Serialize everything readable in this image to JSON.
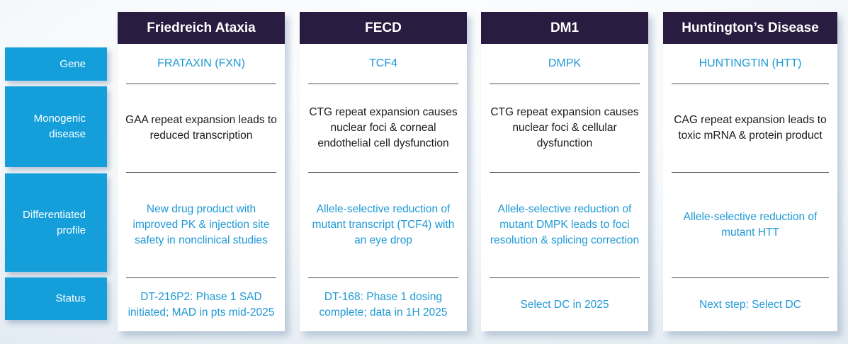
{
  "colors": {
    "header_bg": "#2a1c41",
    "row_label_bg": "#149fdb",
    "accent_text": "#1e99d6"
  },
  "sidebar": {
    "rows": [
      {
        "label": "Gene"
      },
      {
        "label": "Monogenic disease"
      },
      {
        "label": "Differentiated profile"
      },
      {
        "label": "Status"
      }
    ]
  },
  "columns": [
    {
      "title": "Friedreich Ataxia",
      "gene": "FRATAXIN (FXN)",
      "monogenic": "GAA repeat expansion leads to reduced transcription",
      "differentiated": "New drug product with improved PK & injection site safety in nonclinical studies",
      "status": "DT-216P2: Phase 1 SAD initiated; MAD in pts mid-2025"
    },
    {
      "title": "FECD",
      "gene": "TCF4",
      "monogenic": "CTG repeat expansion causes nuclear foci & corneal endothelial cell dysfunction",
      "differentiated": "Allele-selective reduction of mutant transcript (TCF4) with an eye drop",
      "status": "DT-168: Phase 1 dosing complete; data in 1H 2025"
    },
    {
      "title": "DM1",
      "gene": "DMPK",
      "monogenic": "CTG repeat expansion causes nuclear foci & cellular dysfunction",
      "differentiated": "Allele-selective reduction of mutant DMPK leads to foci resolution & splicing correction",
      "status": "Select DC in 2025"
    },
    {
      "title": "Huntington’s Disease",
      "gene": "HUNTINGTIN (HTT)",
      "monogenic": "CAG repeat expansion leads to toxic mRNA & protein product",
      "differentiated": "Allele-selective reduction of mutant HTT",
      "status": "Next step: Select DC"
    }
  ]
}
